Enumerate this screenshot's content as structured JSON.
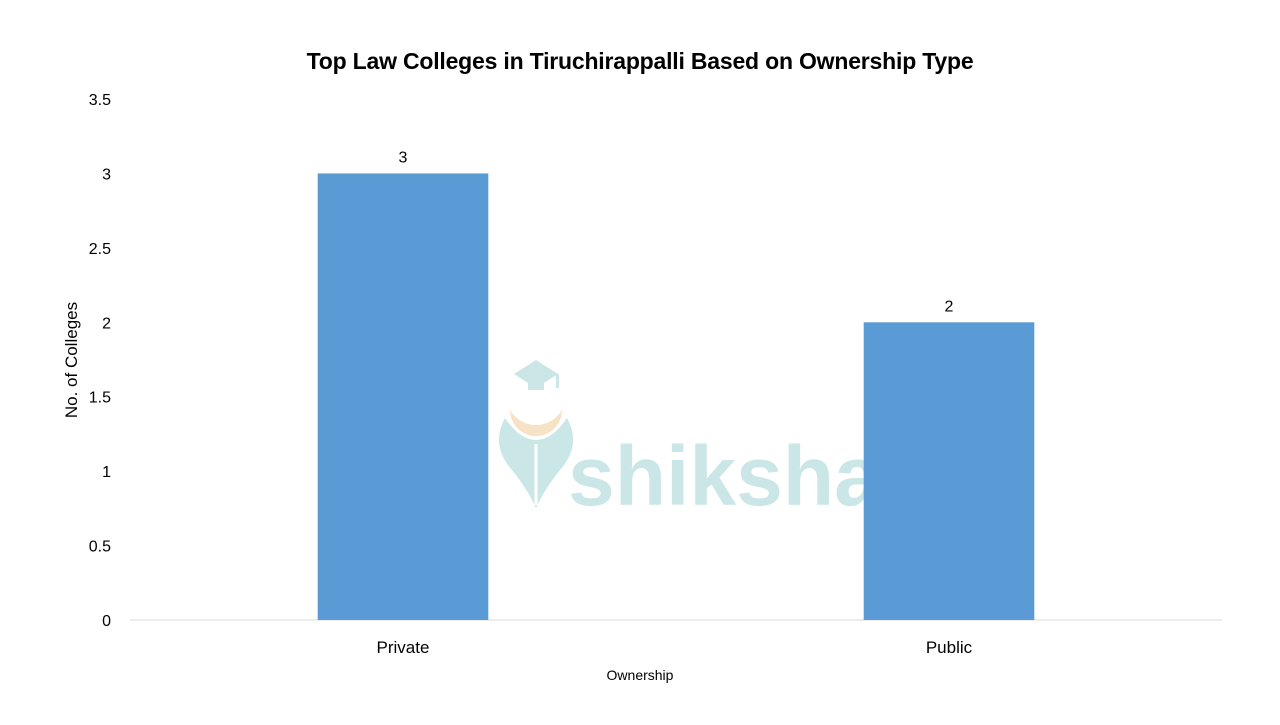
{
  "chart_data": {
    "type": "bar",
    "title": "Top Law Colleges in Tiruchirappalli Based on Ownership Type",
    "xlabel": "Ownership",
    "ylabel": "No. of Colleges",
    "categories": [
      "Private",
      "Public"
    ],
    "values": [
      3,
      2
    ],
    "data_labels": [
      "3",
      "2"
    ],
    "ylim": [
      0,
      3.5
    ],
    "yticks": [
      0,
      0.5,
      1,
      1.5,
      2,
      2.5,
      3,
      3.5
    ],
    "ytick_labels": [
      "0",
      "0.5",
      "1",
      "1.5",
      "2",
      "2.5",
      "3",
      "3.5"
    ],
    "grid": false,
    "legend": "none",
    "bar_color": "#5B9BD5"
  },
  "watermark": {
    "text": "shiksha",
    "color": "#CBE6E6",
    "icon": "graduation-cap-pen-icon"
  }
}
